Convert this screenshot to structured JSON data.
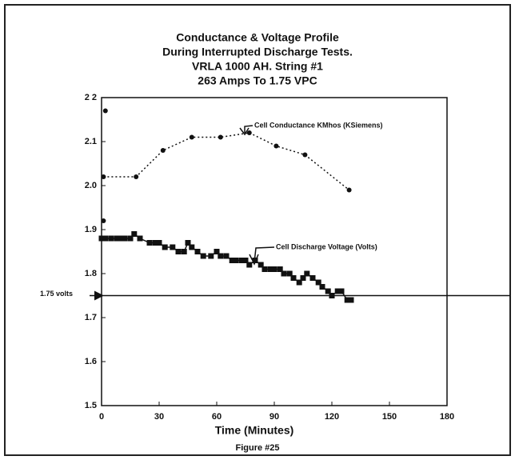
{
  "chart_data": {
    "type": "line",
    "title": [
      "Conductance & Voltage Profile",
      "During Interrupted Discharge Tests.",
      "VRLA 1000 AH. String #1",
      "263 Amps To 1.75 VPC"
    ],
    "xlabel": "Time (Minutes)",
    "caption": "Figure #25",
    "xlim": [
      0,
      180
    ],
    "xticks": [
      0,
      30,
      60,
      90,
      120,
      150,
      180
    ],
    "ylim": [
      1.5,
      2.2
    ],
    "yticks": [
      1.5,
      1.6,
      1.7,
      1.8,
      1.9,
      {
        "value": 2.0,
        "label": "2.0"
      },
      2.1,
      {
        "value": 2.2,
        "label": "2 2"
      }
    ],
    "reference": {
      "value": 1.75,
      "label": "1.75 volts"
    },
    "series": [
      {
        "name": "Cell Conductance KMhos (KSiemens)",
        "color": "#111111",
        "marker": "circle",
        "dash": "2 3",
        "x": [
          1,
          18,
          32,
          47,
          62,
          77,
          91,
          106,
          129
        ],
        "values": [
          2.02,
          2.02,
          2.08,
          2.11,
          2.11,
          2.12,
          2.09,
          2.07,
          1.99
        ]
      },
      {
        "name": "Cell Discharge Voltage (Volts)",
        "color": "#111111",
        "marker": "square",
        "x": [
          0,
          2,
          5,
          8,
          10,
          12,
          15,
          17,
          20,
          25,
          28,
          30,
          33,
          37,
          40,
          43,
          45,
          47,
          50,
          53,
          57,
          60,
          62,
          65,
          68,
          70,
          73,
          75,
          77,
          80,
          83,
          85,
          88,
          90,
          93,
          95,
          98,
          100,
          103,
          105,
          107,
          110,
          113,
          115,
          118,
          120,
          123,
          125,
          128,
          130
        ],
        "values": [
          1.88,
          1.88,
          1.88,
          1.88,
          1.88,
          1.88,
          1.88,
          1.89,
          1.88,
          1.87,
          1.87,
          1.87,
          1.86,
          1.86,
          1.85,
          1.85,
          1.87,
          1.86,
          1.85,
          1.84,
          1.84,
          1.85,
          1.84,
          1.84,
          1.83,
          1.83,
          1.83,
          1.83,
          1.82,
          1.83,
          1.82,
          1.81,
          1.81,
          1.81,
          1.81,
          1.8,
          1.8,
          1.79,
          1.78,
          1.79,
          1.8,
          1.79,
          1.78,
          1.77,
          1.76,
          1.75,
          1.76,
          1.76,
          1.74,
          1.74
        ]
      },
      {
        "color": "#111111",
        "marker": "circle",
        "points_only": true,
        "x": [
          2,
          1
        ],
        "values": [
          2.17,
          1.92
        ]
      }
    ]
  }
}
